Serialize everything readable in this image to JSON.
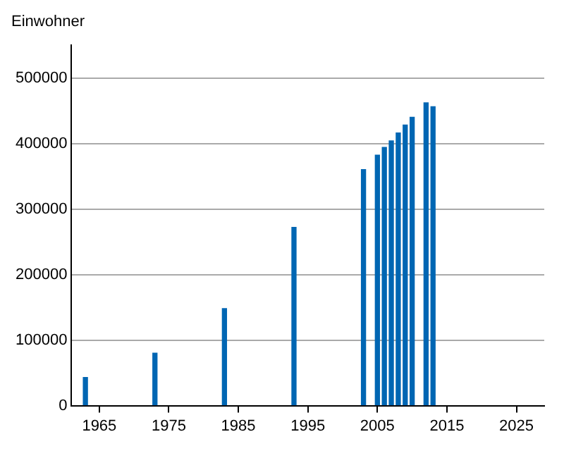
{
  "chart_data": {
    "type": "bar",
    "ylabel": "Einwohner",
    "x": [
      1963,
      1973,
      1983,
      1993,
      2003,
      2005,
      2006,
      2007,
      2008,
      2009,
      2010,
      2012,
      2013
    ],
    "values": [
      43000,
      80000,
      148000,
      272000,
      360000,
      382000,
      394000,
      404000,
      416000,
      428000,
      440000,
      462000,
      456000
    ],
    "color": "#0066b3",
    "xlim": [
      1961,
      2029
    ],
    "xticks": [
      1965,
      1975,
      1985,
      1995,
      2005,
      2015,
      2025
    ],
    "ylim": [
      0,
      550000
    ],
    "yticks": [
      0,
      100000,
      200000,
      300000,
      400000,
      500000
    ],
    "grid": "y"
  }
}
